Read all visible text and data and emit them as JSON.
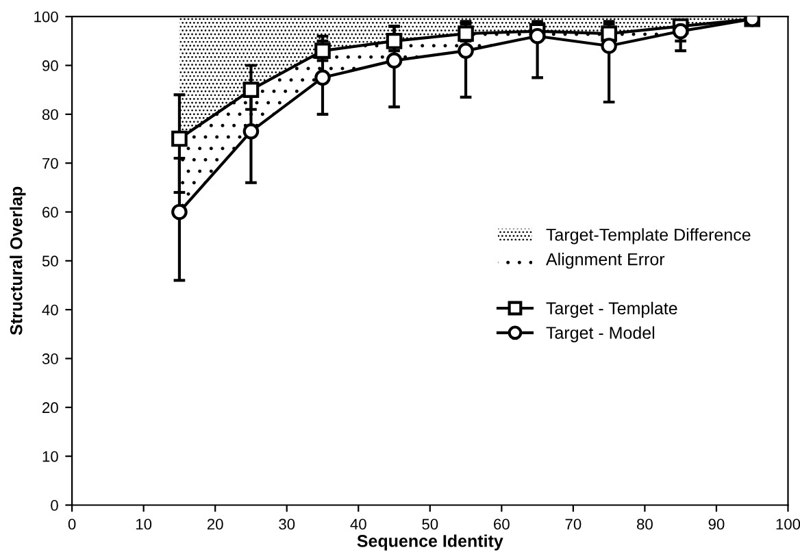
{
  "chart_data": {
    "type": "line",
    "xlabel": "Sequence Identity",
    "ylabel": "Structural Overlap",
    "x": [
      15,
      25,
      35,
      45,
      55,
      65,
      75,
      85,
      95
    ],
    "xlim": [
      0,
      100
    ],
    "xticks": [
      0,
      10,
      20,
      30,
      40,
      50,
      60,
      70,
      80,
      90,
      100
    ],
    "ylim": [
      0,
      100
    ],
    "yticks": [
      0,
      10,
      20,
      30,
      40,
      50,
      60,
      70,
      80,
      90,
      100
    ],
    "grid": false,
    "legend": "center right",
    "annotations": [
      "Target-Template Difference",
      "Alignment Error"
    ],
    "series": [
      {
        "name": "Target - Template",
        "marker": "square",
        "color": "#000000",
        "values": [
          75,
          85,
          93,
          95,
          96.5,
          97,
          96.5,
          98,
          99.5
        ],
        "errors": [
          [
            64,
            84
          ],
          [
            81,
            90
          ],
          [
            91,
            96
          ],
          [
            93,
            98
          ],
          [
            95,
            98.5
          ],
          [
            96,
            98.5
          ],
          [
            95,
            98.5
          ],
          [
            95,
            99
          ],
          null
        ],
        "lower": [
          75,
          85,
          93,
          95,
          96.5,
          97,
          96.5,
          98,
          99.5
        ],
        "upper": [
          100,
          100,
          100,
          100,
          100,
          100,
          100,
          100,
          100
        ]
      },
      {
        "name": "Target - Model",
        "marker": "circle",
        "color": "#000000",
        "values": [
          60,
          76.5,
          87.5,
          91,
          93,
          96,
          94,
          97,
          99.5
        ],
        "errors": [
          [
            46,
            71
          ],
          [
            66,
            86
          ],
          [
            80,
            95
          ],
          [
            81.5,
            98
          ],
          [
            83.5,
            99
          ],
          [
            87.5,
            99
          ],
          [
            82.5,
            99
          ],
          [
            93,
            99
          ],
          null
        ],
        "lower": [
          60,
          76.5,
          87.5,
          91,
          93,
          96,
          94,
          97,
          99.5
        ],
        "upper": [
          75,
          85,
          93,
          95,
          96.5,
          97,
          96.5,
          98,
          99.5
        ]
      }
    ]
  }
}
